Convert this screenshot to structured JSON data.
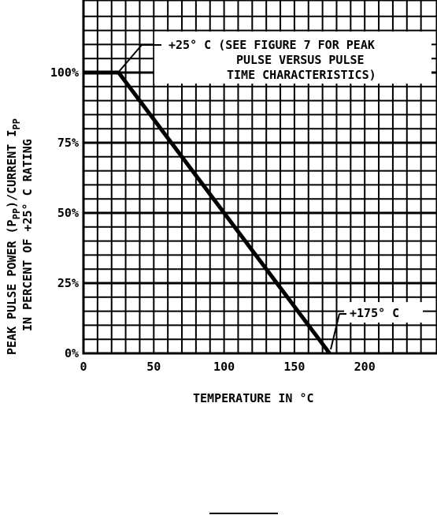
{
  "chart_data": {
    "type": "line",
    "x_ticks": [
      "0",
      "50",
      "100",
      "150",
      "200"
    ],
    "y_ticks": [
      "0%",
      "25%",
      "50%",
      "75%",
      "100%"
    ],
    "xlabel": "TEMPERATURE IN °C",
    "ylabel": [
      "PEAK PULSE POWER (P",
      "PP",
      ")/CURRENT I",
      "PP"
    ],
    "ylabel2": "IN PERCENT OF +25° C RATING",
    "xlim": [
      0,
      245
    ],
    "ylim": [
      0,
      123
    ],
    "grid": true,
    "series": [
      {
        "x": [
          0,
          25,
          175
        ],
        "y": [
          100,
          100,
          0
        ]
      }
    ],
    "annotations": [
      {
        "lines": [
          "+25° C (SEE FIGURE 7 FOR PEAK",
          "PULSE VERSUS PULSE",
          "TIME CHARACTERISTICS)"
        ],
        "x": 25,
        "y": 100
      },
      {
        "lines": [
          "+175° C"
        ],
        "x": 175,
        "y": 0
      }
    ]
  }
}
